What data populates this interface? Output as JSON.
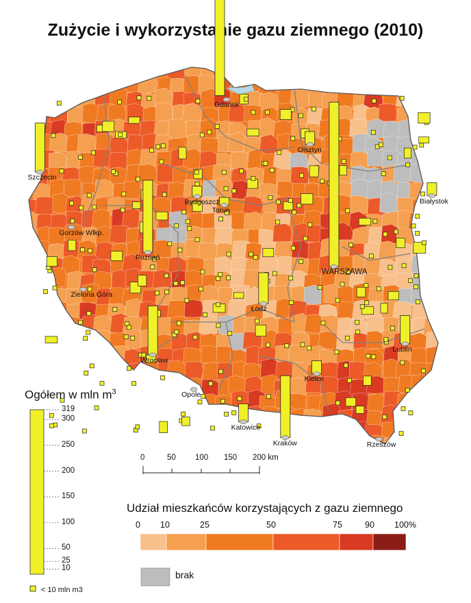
{
  "title": "Zużycie i wykorzystanie gazu ziemnego (2010)",
  "cities": [
    {
      "name": "Gdańsk",
      "lon": 18.65,
      "lat": 54.35
    },
    {
      "name": "Szczecin",
      "lon": 14.55,
      "lat": 53.43
    },
    {
      "name": "Olsztyn",
      "lon": 20.48,
      "lat": 53.78
    },
    {
      "name": "Białystok",
      "lon": 23.16,
      "lat": 53.13
    },
    {
      "name": "Bydgoszcz",
      "lon": 18.0,
      "lat": 53.12
    },
    {
      "name": "Toruń",
      "lon": 18.6,
      "lat": 53.01
    },
    {
      "name": "Gorzów Wlkp.",
      "lon": 15.24,
      "lat": 52.73
    },
    {
      "name": "Poznań",
      "lon": 16.92,
      "lat": 52.41
    },
    {
      "name": "WARSZAWA",
      "lon": 21.01,
      "lat": 52.23
    },
    {
      "name": "Zielona Góra",
      "lon": 15.5,
      "lat": 51.94
    },
    {
      "name": "Łódź",
      "lon": 19.46,
      "lat": 51.76
    },
    {
      "name": "Wrocław",
      "lon": 17.03,
      "lat": 51.11
    },
    {
      "name": "Lublin",
      "lon": 22.57,
      "lat": 51.25
    },
    {
      "name": "Kielce",
      "lon": 20.63,
      "lat": 50.87
    },
    {
      "name": "Opole",
      "lon": 17.93,
      "lat": 50.67
    },
    {
      "name": "Katowice",
      "lon": 19.02,
      "lat": 50.26
    },
    {
      "name": "Kraków",
      "lon": 19.94,
      "lat": 50.06
    },
    {
      "name": "Rzeszów",
      "lon": 22.0,
      "lat": 50.04
    }
  ],
  "legend_total": {
    "title": "Ogółem w mln m",
    "title_sup": "3",
    "ticks": [
      319,
      300,
      250,
      200,
      150,
      100,
      50,
      25,
      10
    ],
    "small_symbol_label": "< 10 mln m3",
    "bar_color": "#f0f028"
  },
  "scale_bar": {
    "ticks": [
      "0",
      "50",
      "100",
      "150",
      "200 km"
    ]
  },
  "legend_share": {
    "title": "Udział mieszkańców korzystających z gazu ziemnego",
    "breaks": [
      "0",
      "10",
      "25",
      "50",
      "75",
      "90",
      "100%"
    ],
    "classes": [
      {
        "from": 0,
        "to": 10,
        "color": "#f7c08c"
      },
      {
        "from": 10,
        "to": 25,
        "color": "#f5a050"
      },
      {
        "from": 25,
        "to": 50,
        "color": "#f07a22"
      },
      {
        "from": 50,
        "to": 75,
        "color": "#ec5a28"
      },
      {
        "from": 75,
        "to": 90,
        "color": "#d93a22"
      },
      {
        "from": 90,
        "to": 100,
        "color": "#8c1c16"
      }
    ],
    "no_data_label": "brak",
    "no_data_color": "#bdbdbd"
  },
  "bars": [
    {
      "lon": 18.5,
      "lat": 54.4,
      "v": 200
    },
    {
      "lon": 14.55,
      "lat": 53.43,
      "v": 95
    },
    {
      "lon": 16.92,
      "lat": 52.41,
      "v": 140
    },
    {
      "lon": 17.03,
      "lat": 51.11,
      "v": 95
    },
    {
      "lon": 21.01,
      "lat": 52.23,
      "v": 319
    },
    {
      "lon": 19.46,
      "lat": 51.76,
      "v": 60
    },
    {
      "lon": 19.94,
      "lat": 50.06,
      "v": 120
    },
    {
      "lon": 22.57,
      "lat": 51.25,
      "v": 55
    },
    {
      "lon": 23.16,
      "lat": 53.13,
      "v": 25
    },
    {
      "lon": 20.48,
      "lat": 53.78,
      "v": 25
    },
    {
      "lon": 18.0,
      "lat": 53.12,
      "v": 20
    },
    {
      "lon": 18.6,
      "lat": 53.01,
      "v": 15
    },
    {
      "lon": 20.63,
      "lat": 50.87,
      "v": 25
    },
    {
      "lon": 19.02,
      "lat": 50.26,
      "v": 35
    }
  ]
}
